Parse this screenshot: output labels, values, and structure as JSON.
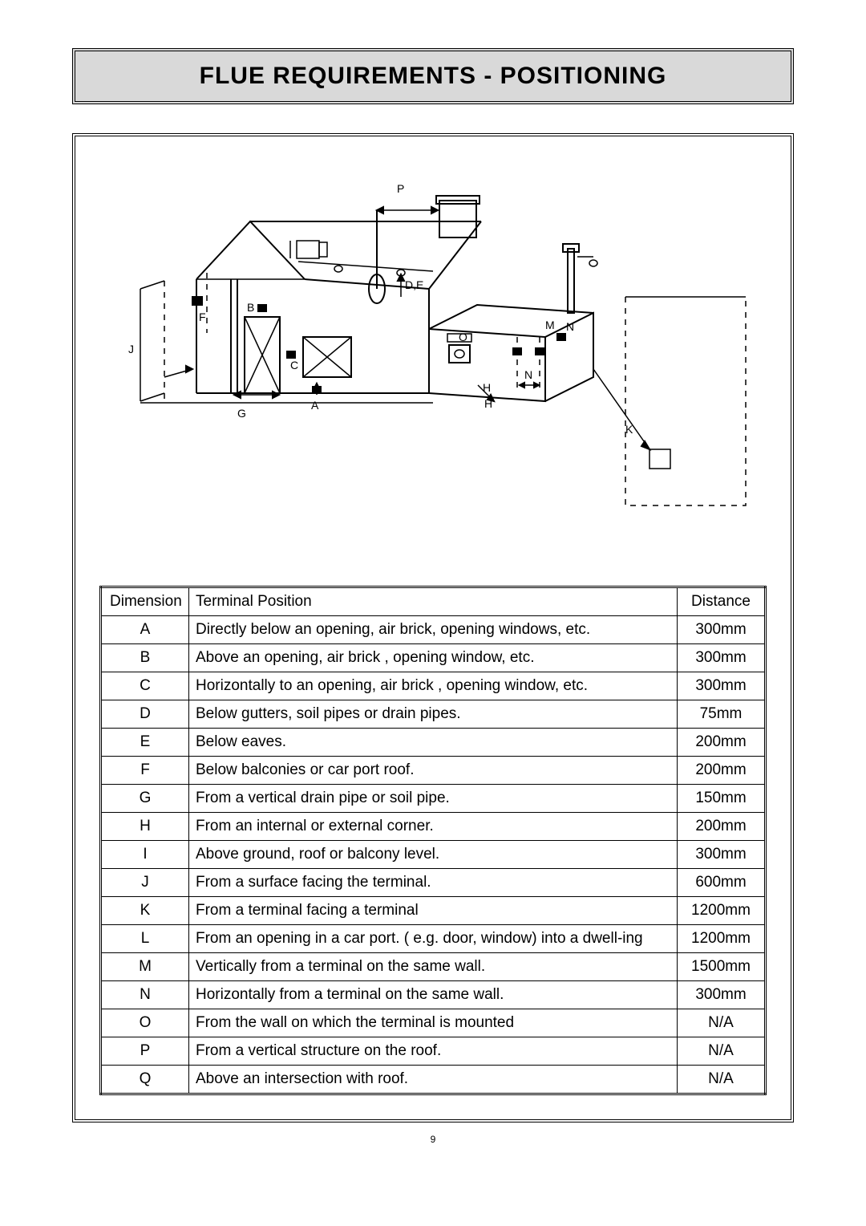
{
  "title": "FLUE REQUIREMENTS - POSITIONING",
  "page_number": "9",
  "table": {
    "columns": [
      "Dimension",
      "Terminal Position",
      "Distance"
    ],
    "rows": [
      [
        "A",
        "Directly below an opening, air brick, opening windows, etc.",
        "300mm"
      ],
      [
        "B",
        "Above an opening, air brick , opening window, etc.",
        "300mm"
      ],
      [
        "C",
        "Horizontally to an opening, air brick , opening window, etc.",
        "300mm"
      ],
      [
        "D",
        "Below gutters, soil pipes or drain pipes.",
        "75mm"
      ],
      [
        "E",
        "Below eaves.",
        "200mm"
      ],
      [
        "F",
        "Below balconies or car port roof.",
        "200mm"
      ],
      [
        "G",
        "From a vertical drain pipe or soil pipe.",
        "150mm"
      ],
      [
        "H",
        "From an internal or external corner.",
        "200mm"
      ],
      [
        "I",
        "Above ground, roof or balcony level.",
        "300mm"
      ],
      [
        "J",
        "From a surface facing the terminal.",
        "600mm"
      ],
      [
        "K",
        "From a terminal facing a terminal",
        "1200mm"
      ],
      [
        "L",
        "From an opening in a car port. ( e.g. door, window) into a dwell-ing",
        "1200mm"
      ],
      [
        "M",
        "Vertically from a terminal on the same wall.",
        "1500mm"
      ],
      [
        "N",
        "Horizontally from a terminal on the same wall.",
        "300mm"
      ],
      [
        "O",
        "From the wall on which the terminal is mounted",
        "N/A"
      ],
      [
        "P",
        "From a vertical structure on the roof.",
        "N/A"
      ],
      [
        "Q",
        "Above an intersection with roof.",
        "N/A"
      ]
    ]
  },
  "diagram": {
    "labels": [
      "P",
      "D,E",
      "F",
      "J",
      "B",
      "C",
      "G",
      "A",
      "O",
      "H",
      "M",
      "N",
      "K"
    ]
  }
}
